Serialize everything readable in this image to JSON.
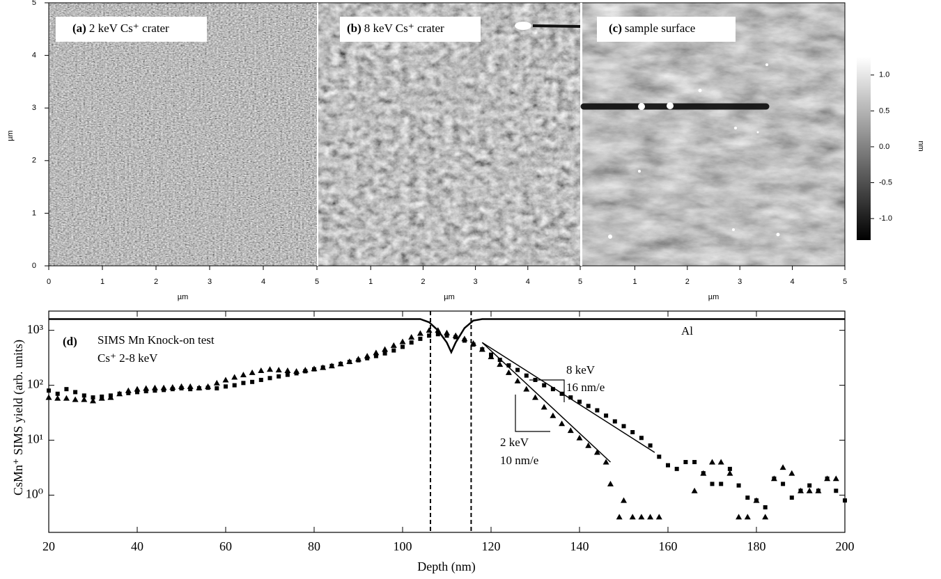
{
  "chart_data": [
    {
      "type": "image",
      "panel": "(a)",
      "title": "2 keV Cs⁺ crater",
      "xlim": [
        0,
        5
      ],
      "xticks": [
        0,
        1,
        2,
        3,
        4,
        5
      ],
      "ylim": [
        0,
        5
      ],
      "yticks": [
        0,
        1,
        2,
        3,
        4,
        5
      ],
      "xlabel": "µm",
      "ylabel": "µm"
    },
    {
      "type": "image",
      "panel": "(b)",
      "title": "8 keV Cs⁺ crater",
      "xlim": [
        0,
        5
      ],
      "xticks": [
        1,
        2,
        3,
        4,
        5
      ],
      "xlabel": "µm"
    },
    {
      "type": "image",
      "panel": "(c)",
      "title": "sample surface",
      "xlim": [
        0,
        5
      ],
      "xticks": [
        1,
        2,
        3,
        4,
        5
      ],
      "xlabel": "µm"
    },
    {
      "type": "colorbar",
      "ylim": [
        -1.3,
        1.25
      ],
      "yticks": [
        {
          "value": 1,
          "label": "1.0"
        },
        0.5,
        {
          "value": 0,
          "label": "0.0"
        },
        -0.5,
        {
          "value": -1,
          "label": "-1.0"
        }
      ],
      "ylabel": "nm"
    },
    {
      "type": "scatter",
      "panel": "(d)",
      "title": "SIMS Mn Knock-on test",
      "subtitle": "Cs⁺ 2-8 keV",
      "xlabel": "Depth (nm)",
      "ylabel": "CsMn⁺ SIMS yield (arb. units)",
      "xlim": [
        20,
        200
      ],
      "xticks": [
        20,
        40,
        60,
        80,
        100,
        120,
        140,
        160,
        180,
        200
      ],
      "ylim": [
        0.21,
        2240
      ],
      "yscale": "log",
      "yticks": [
        {
          "value": 1,
          "label": "10⁰"
        },
        {
          "value": 10,
          "label": "10¹"
        },
        {
          "value": 100,
          "label": "10²"
        },
        {
          "value": 1000,
          "label": "10³"
        }
      ],
      "series": [
        {
          "name": "8 keV",
          "marker": "square",
          "color": "#000000",
          "x": [
            20,
            22,
            24,
            26,
            28,
            30,
            32,
            34,
            36,
            38,
            40,
            42,
            44,
            46,
            48,
            50,
            52,
            54,
            56,
            58,
            60,
            62,
            64,
            66,
            68,
            70,
            72,
            74,
            76,
            78,
            80,
            82,
            84,
            86,
            88,
            90,
            92,
            94,
            96,
            98,
            100,
            102,
            104,
            106,
            108,
            110,
            112,
            114,
            116,
            118,
            120,
            122,
            124,
            126,
            128,
            130,
            132,
            134,
            136,
            138,
            140,
            142,
            144,
            146,
            148,
            150,
            152,
            154,
            156,
            158,
            160,
            162,
            164,
            166,
            168,
            170,
            172,
            174,
            176,
            178,
            180,
            182,
            184,
            186,
            188,
            190,
            192,
            194,
            196,
            198,
            200
          ],
          "values": [
            80,
            70,
            85,
            75,
            65,
            60,
            62,
            65,
            70,
            72,
            75,
            78,
            80,
            82,
            85,
            88,
            85,
            88,
            90,
            88,
            95,
            100,
            110,
            115,
            125,
            135,
            145,
            155,
            165,
            180,
            195,
            210,
            225,
            245,
            265,
            285,
            310,
            340,
            380,
            430,
            500,
            600,
            700,
            800,
            850,
            800,
            750,
            650,
            550,
            450,
            360,
            290,
            230,
            190,
            150,
            125,
            100,
            85,
            70,
            60,
            50,
            42,
            35,
            28,
            22,
            18,
            14,
            11,
            8,
            5,
            3.5,
            3,
            4,
            4,
            2.5,
            1.6,
            1.6,
            3,
            1.5,
            0.9,
            0.8,
            0.6,
            2,
            1.6,
            0.9,
            1.2,
            1.5,
            1.2,
            2,
            1.2,
            0.8
          ]
        },
        {
          "name": "2 keV",
          "marker": "triangle",
          "color": "#000000",
          "x": [
            20,
            22,
            24,
            26,
            28,
            30,
            32,
            34,
            36,
            38,
            40,
            42,
            44,
            46,
            48,
            50,
            52,
            54,
            56,
            58,
            60,
            62,
            64,
            66,
            68,
            70,
            72,
            74,
            76,
            78,
            80,
            82,
            84,
            86,
            88,
            90,
            92,
            94,
            96,
            98,
            100,
            102,
            104,
            106,
            108,
            110,
            112,
            114,
            116,
            118,
            120,
            122,
            124,
            126,
            128,
            130,
            132,
            134,
            136,
            138,
            140,
            142,
            144,
            146,
            147,
            149,
            150,
            152,
            154,
            156,
            158,
            166,
            168,
            170,
            172,
            174,
            176,
            178,
            180,
            182,
            184,
            186,
            188,
            190,
            192,
            194,
            196,
            198
          ],
          "values": [
            60,
            58,
            58,
            55,
            55,
            52,
            58,
            60,
            70,
            80,
            85,
            88,
            90,
            90,
            92,
            95,
            95,
            90,
            95,
            110,
            125,
            140,
            155,
            170,
            185,
            195,
            190,
            185,
            180,
            190,
            200,
            210,
            225,
            245,
            270,
            300,
            340,
            390,
            450,
            530,
            620,
            750,
            880,
            1000,
            1000,
            900,
            800,
            700,
            580,
            450,
            330,
            240,
            170,
            120,
            85,
            60,
            40,
            28,
            20,
            15,
            11,
            8,
            6,
            4,
            1.6,
            0.4,
            0.8,
            0.4,
            0.4,
            0.4,
            0.4,
            1.2,
            2.5,
            4,
            4,
            2.5,
            0.4,
            0.4,
            0.8,
            0.4,
            2,
            3.2,
            2.5,
            1.2,
            1.2,
            1.2,
            2,
            2
          ]
        },
        {
          "name": "Al",
          "marker": "line",
          "color": "#000000",
          "x": [
            20,
            104,
            106,
            108,
            110,
            111,
            112,
            114,
            116,
            118,
            200
          ],
          "values": [
            1600,
            1600,
            1400,
            1000,
            600,
            400,
            600,
            1100,
            1500,
            1600,
            1600
          ]
        }
      ],
      "fits": [
        {
          "x": [
            118,
            157
          ],
          "values": [
            600,
            6
          ]
        },
        {
          "x": [
            118,
            147
          ],
          "values": [
            600,
            4
          ]
        }
      ],
      "vlines": [
        106.3,
        115.5
      ],
      "annotations": [
        "16 nm/e",
        "10 nm/e"
      ]
    }
  ]
}
